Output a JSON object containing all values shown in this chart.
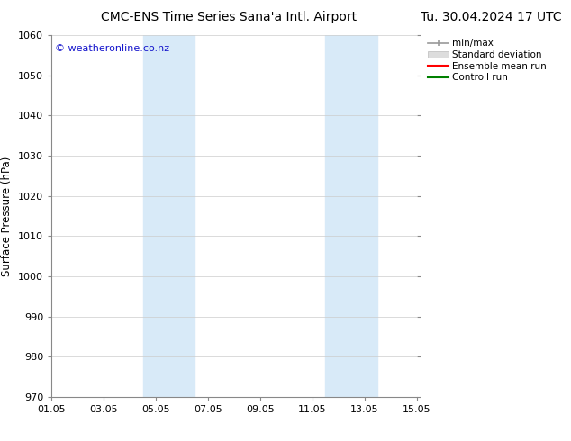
{
  "title_left": "CMC-ENS Time Series Sana'a Intl. Airport",
  "title_right": "Tu. 30.04.2024 17 UTC",
  "ylabel": "Surface Pressure (hPa)",
  "ylim": [
    970,
    1060
  ],
  "yticks": [
    970,
    980,
    990,
    1000,
    1010,
    1020,
    1030,
    1040,
    1050,
    1060
  ],
  "xlim_start": 0.0,
  "xlim_end": 14.0,
  "xtick_labels": [
    "01.05",
    "03.05",
    "05.05",
    "07.05",
    "09.05",
    "11.05",
    "13.05",
    "15.05"
  ],
  "xtick_positions": [
    0,
    2,
    4,
    6,
    8,
    10,
    12,
    14
  ],
  "shaded_bands": [
    {
      "xmin": 3.5,
      "xmax": 5.5
    },
    {
      "xmin": 10.5,
      "xmax": 12.5
    }
  ],
  "shaded_color": "#d8eaf8",
  "watermark_text": "© weatheronline.co.nz",
  "watermark_color": "#1515cc",
  "watermark_fontsize": 8,
  "legend_entries": [
    "min/max",
    "Standard deviation",
    "Ensemble mean run",
    "Controll run"
  ],
  "legend_colors_line": [
    "#aaaaaa",
    "#cccccc",
    "#ff0000",
    "#008000"
  ],
  "background_color": "#ffffff",
  "plot_background": "#ffffff",
  "grid_color": "#cccccc",
  "title_fontsize": 10,
  "tick_fontsize": 8,
  "ylabel_fontsize": 8.5,
  "legend_fontsize": 7.5
}
